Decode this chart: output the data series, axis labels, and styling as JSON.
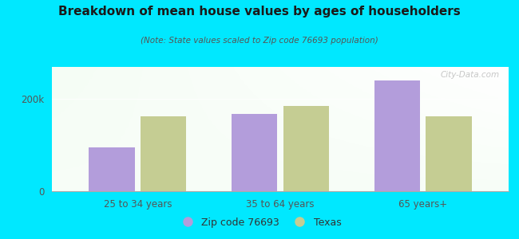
{
  "title": "Breakdown of mean house values by ages of householders",
  "subtitle": "(Note: State values scaled to Zip code 76693 population)",
  "categories": [
    "25 to 34 years",
    "35 to 64 years",
    "65 years+"
  ],
  "zip_values": [
    95000,
    168000,
    240000
  ],
  "texas_values": [
    163000,
    185000,
    163000
  ],
  "zip_color": "#b39ddb",
  "texas_color": "#c5cd93",
  "background_outer": "#00e8ff",
  "ylim": [
    0,
    270000
  ],
  "yticks": [
    0,
    200000
  ],
  "ytick_labels": [
    "0",
    "200k"
  ],
  "watermark": "City-Data.com",
  "legend_zip_label": "Zip code 76693",
  "legend_texas_label": "Texas",
  "bar_width": 0.32
}
